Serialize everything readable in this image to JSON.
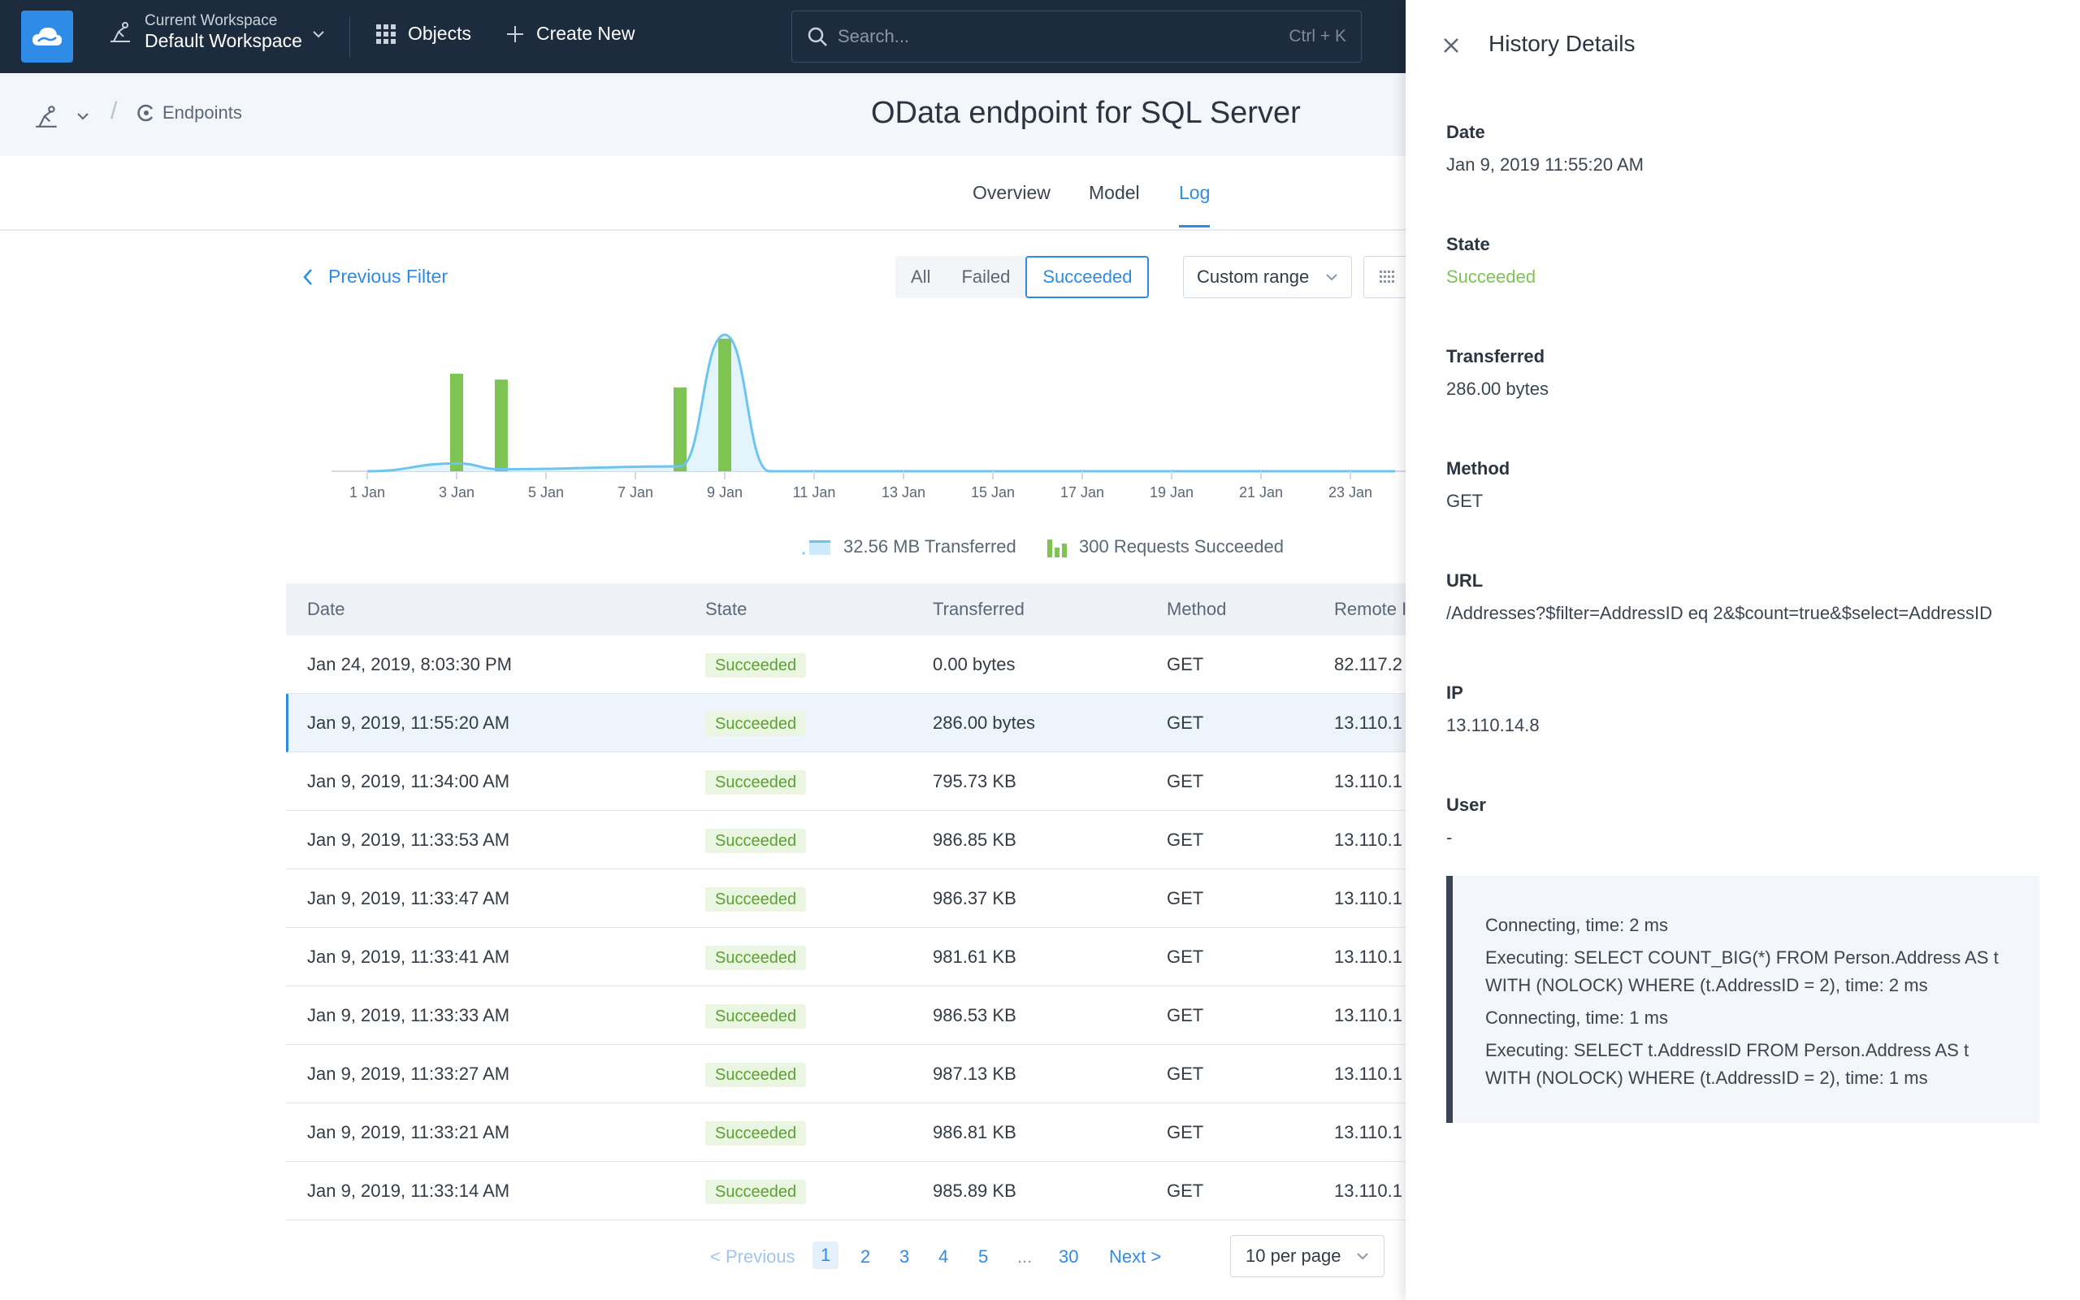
{
  "topbar": {
    "workspace_caption": "Current Workspace",
    "workspace_name": "Default Workspace",
    "objects_label": "Objects",
    "create_label": "Create New",
    "search_placeholder": "Search...",
    "search_shortcut": "Ctrl + K"
  },
  "breadcrumb": {
    "endpoints_label": "Endpoints"
  },
  "page_title": "OData endpoint for SQL Server",
  "tabs": [
    {
      "label": "Overview"
    },
    {
      "label": "Model"
    },
    {
      "label": "Log",
      "active": true
    }
  ],
  "filter": {
    "previous_label": "Previous Filter",
    "segments": [
      "All",
      "Failed",
      "Succeeded"
    ],
    "active_segment": "Succeeded",
    "range_label": "Custom range"
  },
  "chart_data": {
    "type": "bar",
    "x_ticks": [
      "1 Jan",
      "3 Jan",
      "5 Jan",
      "7 Jan",
      "9 Jan",
      "11 Jan",
      "13 Jan",
      "15 Jan",
      "17 Jan",
      "19 Jan",
      "21 Jan",
      "23 Jan"
    ],
    "series": [
      {
        "name": "300 Requests Succeeded",
        "color": "#7dc452",
        "points": [
          {
            "day": 3,
            "value": 1.0
          },
          {
            "day": 4,
            "value": 0.94
          },
          {
            "day": 8,
            "value": 0.86
          },
          {
            "day": 9,
            "value": 1.36
          }
        ]
      },
      {
        "name": "32.56 MB Transferred",
        "color": "#6cc5f0",
        "type": "area",
        "points": [
          {
            "day": 1,
            "value": 0
          },
          {
            "day": 3,
            "value": 0.08
          },
          {
            "day": 4,
            "value": 0.02
          },
          {
            "day": 8,
            "value": 0.05
          },
          {
            "day": 9,
            "value": 1.4
          },
          {
            "day": 10,
            "value": 0
          },
          {
            "day": 24,
            "value": 0
          }
        ]
      }
    ],
    "legend": [
      "32.56 MB Transferred",
      "300 Requests Succeeded"
    ]
  },
  "table": {
    "headers": [
      "Date",
      "State",
      "Transferred",
      "Method",
      "Remote IP"
    ],
    "rows": [
      {
        "date": "Jan 24, 2019, 8:03:30 PM",
        "state": "Succeeded",
        "transferred": "0.00 bytes",
        "method": "GET",
        "ip": "82.117.2"
      },
      {
        "date": "Jan 9, 2019, 11:55:20 AM",
        "state": "Succeeded",
        "transferred": "286.00 bytes",
        "method": "GET",
        "ip": "13.110.1",
        "selected": true
      },
      {
        "date": "Jan 9, 2019, 11:34:00 AM",
        "state": "Succeeded",
        "transferred": "795.73 KB",
        "method": "GET",
        "ip": "13.110.1"
      },
      {
        "date": "Jan 9, 2019, 11:33:53 AM",
        "state": "Succeeded",
        "transferred": "986.85 KB",
        "method": "GET",
        "ip": "13.110.1"
      },
      {
        "date": "Jan 9, 2019, 11:33:47 AM",
        "state": "Succeeded",
        "transferred": "986.37 KB",
        "method": "GET",
        "ip": "13.110.1"
      },
      {
        "date": "Jan 9, 2019, 11:33:41 AM",
        "state": "Succeeded",
        "transferred": "981.61 KB",
        "method": "GET",
        "ip": "13.110.1"
      },
      {
        "date": "Jan 9, 2019, 11:33:33 AM",
        "state": "Succeeded",
        "transferred": "986.53 KB",
        "method": "GET",
        "ip": "13.110.1"
      },
      {
        "date": "Jan 9, 2019, 11:33:27 AM",
        "state": "Succeeded",
        "transferred": "987.13 KB",
        "method": "GET",
        "ip": "13.110.1"
      },
      {
        "date": "Jan 9, 2019, 11:33:21 AM",
        "state": "Succeeded",
        "transferred": "986.81 KB",
        "method": "GET",
        "ip": "13.110.1"
      },
      {
        "date": "Jan 9, 2019, 11:33:14 AM",
        "state": "Succeeded",
        "transferred": "985.89 KB",
        "method": "GET",
        "ip": "13.110.1"
      }
    ]
  },
  "pager": {
    "previous": "< Previous",
    "pages": [
      "1",
      "2",
      "3",
      "4",
      "5",
      "...",
      "30"
    ],
    "current": "1",
    "next": "Next >",
    "per_page": "10 per page"
  },
  "panel": {
    "title": "History Details",
    "date_label": "Date",
    "date_value": "Jan 9, 2019 11:55:20 AM",
    "state_label": "State",
    "state_value": "Succeeded",
    "transferred_label": "Transferred",
    "transferred_value": "286.00 bytes",
    "method_label": "Method",
    "method_value": "GET",
    "url_label": "URL",
    "url_value": "/Addresses?$filter=AddressID eq 2&$count=true&$select=AddressID",
    "ip_label": "IP",
    "ip_value": "13.110.14.8",
    "user_label": "User",
    "user_value": "-",
    "log_lines": [
      "Connecting, time: 2 ms",
      "Executing: SELECT COUNT_BIG(*) FROM Person.Address AS t WITH (NOLOCK) WHERE (t.AddressID = 2), time: 2 ms",
      "Connecting, time: 1 ms",
      "Executing: SELECT t.AddressID FROM Person.Address AS t WITH (NOLOCK) WHERE (t.AddressID = 2), time: 1 ms"
    ]
  },
  "colors": {
    "accent": "#2e8ce6",
    "topbar": "#1d2b3f",
    "success": "#7dc452",
    "area": "#6cc5f0"
  }
}
